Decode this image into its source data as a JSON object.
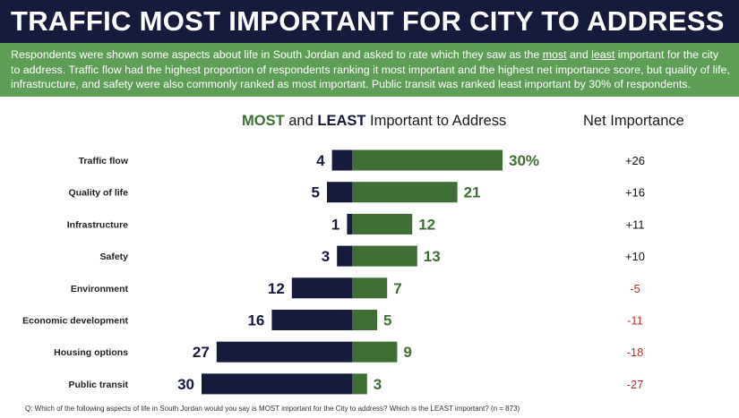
{
  "title": "TRAFFIC MOST IMPORTANT FOR CITY TO ADDRESS",
  "summary": {
    "part1": "Respondents were shown some aspects about life in South Jordan and asked to rate which they saw as the ",
    "most": "most",
    "and": " and ",
    "least": "least",
    "part2": " important for the city to address. Traffic flow had the highest proportion of respondents ranking it most important and the highest net importance score, but quality of life, infrastructure, and safety were also commonly ranked as most important. Public transit was ranked least important by 30% of respondents."
  },
  "chart_header": {
    "most": "MOST",
    "and": " and ",
    "least": "LEAST",
    "rest": " Important to Address",
    "net": "Net Importance"
  },
  "footnote": "Q: Which of the following aspects of life in South Jordan would you say is MOST important for the City to address? Which is the LEAST important? (n = 873)",
  "colors": {
    "most": "#3f6e35",
    "least": "#161a3b",
    "net_positive": "#111111",
    "net_negative": "#b5322a"
  },
  "chart_data": {
    "type": "bar",
    "orientation": "horizontal-diverging",
    "categories": [
      "Traffic flow",
      "Quality of life",
      "Infrastructure",
      "Safety",
      "Environment",
      "Economic development",
      "Housing options",
      "Public transit"
    ],
    "series": [
      {
        "name": "LEAST",
        "values": [
          4,
          5,
          1,
          3,
          12,
          16,
          27,
          30
        ]
      },
      {
        "name": "MOST",
        "values": [
          30,
          21,
          12,
          13,
          7,
          5,
          9,
          3
        ]
      }
    ],
    "most_labels": [
      "30%",
      "21",
      "12",
      "13",
      "7",
      "5",
      "9",
      "3"
    ],
    "least_labels": [
      "4",
      "5",
      "1",
      "3",
      "12",
      "16",
      "27",
      "30"
    ],
    "net_importance": [
      "+26",
      "+16",
      "+11",
      "+10",
      "-5",
      "-11",
      "-18",
      "-27"
    ]
  }
}
